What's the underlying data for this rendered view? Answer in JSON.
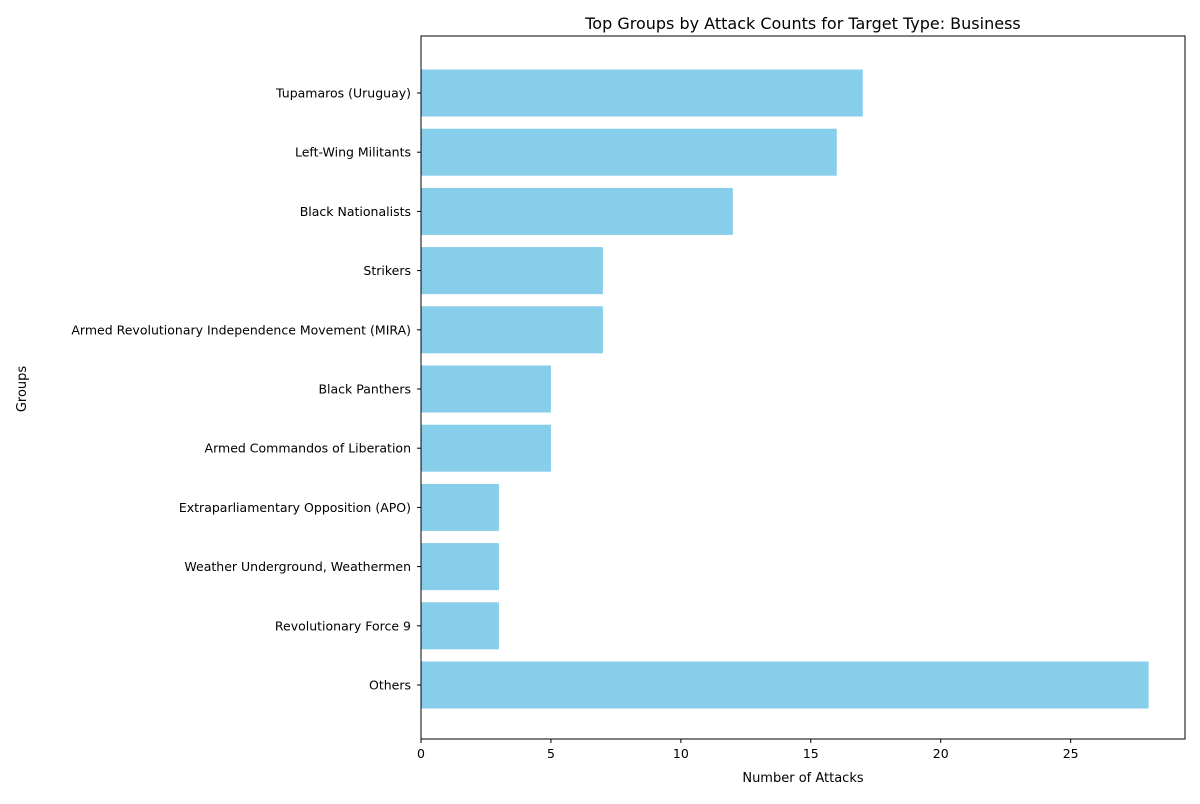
{
  "chart_data": {
    "type": "bar",
    "orientation": "horizontal",
    "title": "Top Groups by Attack Counts for Target Type: Business",
    "xlabel": "Number of Attacks",
    "ylabel": "Groups",
    "categories": [
      "Tupamaros (Uruguay)",
      "Left-Wing Militants",
      "Black Nationalists",
      "Strikers",
      "Armed Revolutionary Independence Movement (MIRA)",
      "Black Panthers",
      "Armed Commandos of Liberation",
      "Extraparliamentary Opposition (APO)",
      "Weather Underground, Weathermen",
      "Revolutionary Force 9",
      "Others"
    ],
    "values": [
      17,
      16,
      12,
      7,
      7,
      5,
      5,
      3,
      3,
      3,
      28
    ],
    "xlim": [
      0,
      29.4
    ],
    "xticks": [
      0,
      5,
      10,
      15,
      20,
      25
    ],
    "grid": false,
    "legend": "none",
    "bar_color": "#87ceeb"
  }
}
